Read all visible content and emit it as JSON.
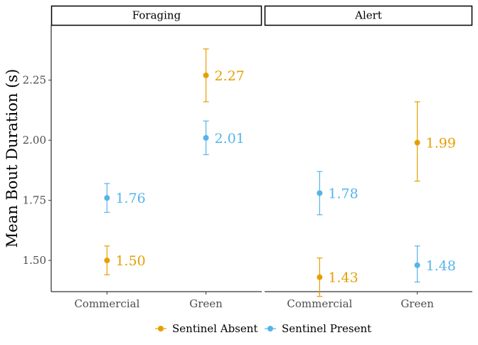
{
  "chart_data": {
    "type": "scatter",
    "subtype": "point-with-errorbars",
    "title": "",
    "ylabel": "Mean Bout Duration (s)",
    "xlabel": "",
    "ylim": [
      1.37,
      2.48
    ],
    "y_ticks": [
      1.5,
      1.75,
      2.0,
      2.25
    ],
    "y_tick_labels": [
      "1.50",
      "1.75",
      "2.00",
      "2.25"
    ],
    "categories": [
      "Commercial",
      "Green"
    ],
    "grid": false,
    "legend_position": "bottom",
    "panels": [
      {
        "title": "Foraging",
        "series": [
          {
            "name": "Sentinel Absent",
            "color": "#E69F00",
            "points": [
              {
                "category": "Commercial",
                "y": 1.5,
                "ymin": 1.44,
                "ymax": 1.56,
                "label": "1.50"
              },
              {
                "category": "Green",
                "y": 2.27,
                "ymin": 2.16,
                "ymax": 2.38,
                "label": "2.27"
              }
            ]
          },
          {
            "name": "Sentinel Present",
            "color": "#56B4E9",
            "points": [
              {
                "category": "Commercial",
                "y": 1.76,
                "ymin": 1.7,
                "ymax": 1.82,
                "label": "1.76"
              },
              {
                "category": "Green",
                "y": 2.01,
                "ymin": 1.94,
                "ymax": 2.08,
                "label": "2.01"
              }
            ]
          }
        ]
      },
      {
        "title": "Alert",
        "series": [
          {
            "name": "Sentinel Absent",
            "color": "#E69F00",
            "points": [
              {
                "category": "Commercial",
                "y": 1.43,
                "ymin": 1.35,
                "ymax": 1.51,
                "label": "1.43"
              },
              {
                "category": "Green",
                "y": 1.99,
                "ymin": 1.83,
                "ymax": 2.16,
                "label": "1.99"
              }
            ]
          },
          {
            "name": "Sentinel Present",
            "color": "#56B4E9",
            "points": [
              {
                "category": "Commercial",
                "y": 1.78,
                "ymin": 1.69,
                "ymax": 1.87,
                "label": "1.78"
              },
              {
                "category": "Green",
                "y": 1.48,
                "ymin": 1.41,
                "ymax": 1.56,
                "label": "1.48"
              }
            ]
          }
        ]
      }
    ]
  }
}
